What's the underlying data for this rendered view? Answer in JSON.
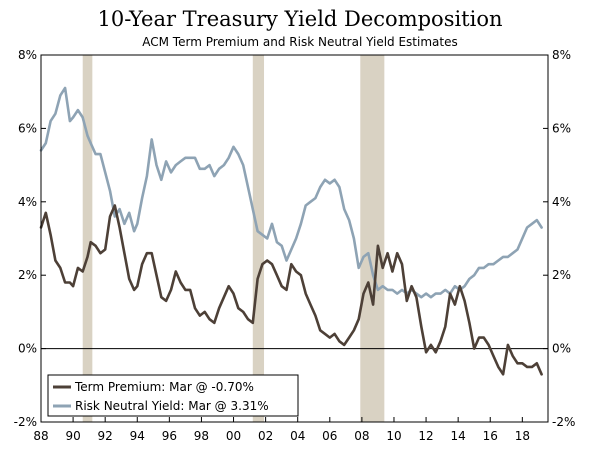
{
  "chart_data": {
    "type": "line",
    "title": "10-Year Treasury Yield Decomposition",
    "subtitle": "ACM Term Premium and Risk Neutral Yield Estimates",
    "xlabel": "",
    "ylabel": "",
    "xlim": [
      1988,
      2019.6
    ],
    "ylim": [
      -2,
      8
    ],
    "x_ticks": [
      1988,
      1990,
      1992,
      1994,
      1996,
      1998,
      2000,
      2002,
      2004,
      2006,
      2008,
      2010,
      2012,
      2014,
      2016,
      2018
    ],
    "x_tick_labels": [
      "88",
      "90",
      "92",
      "94",
      "96",
      "98",
      "00",
      "02",
      "04",
      "06",
      "08",
      "10",
      "12",
      "14",
      "16",
      "18"
    ],
    "y_ticks": [
      -2,
      0,
      2,
      4,
      6,
      8
    ],
    "y_tick_labels_left": [
      "-2%",
      "0%",
      "2%",
      "4%",
      "6%",
      "8%"
    ],
    "y_tick_labels_right": [
      "-2%",
      "0%",
      "2%",
      "4%",
      "6%",
      "8%"
    ],
    "recessions": [
      [
        1990.6,
        1991.2
      ],
      [
        2001.2,
        2001.9
      ],
      [
        2007.9,
        2009.4
      ]
    ],
    "legend": {
      "position": "bottom-left"
    },
    "series": [
      {
        "name": "Term Premium: Mar @ -0.70%",
        "color": "#4d4037",
        "x": [
          1988.0,
          1988.3,
          1988.6,
          1988.9,
          1989.2,
          1989.5,
          1989.8,
          1990.0,
          1990.3,
          1990.6,
          1990.9,
          1991.1,
          1991.4,
          1991.7,
          1992.0,
          1992.3,
          1992.6,
          1992.9,
          1993.2,
          1993.5,
          1993.8,
          1994.0,
          1994.3,
          1994.6,
          1994.9,
          1995.2,
          1995.5,
          1995.8,
          1996.1,
          1996.4,
          1996.7,
          1997.0,
          1997.3,
          1997.6,
          1997.9,
          1998.2,
          1998.5,
          1998.8,
          1999.1,
          1999.4,
          1999.7,
          2000.0,
          2000.3,
          2000.6,
          2000.9,
          2001.2,
          2001.5,
          2001.8,
          2002.1,
          2002.4,
          2002.7,
          2003.0,
          2003.3,
          2003.6,
          2003.9,
          2004.2,
          2004.5,
          2004.8,
          2005.1,
          2005.4,
          2005.7,
          2006.0,
          2006.3,
          2006.6,
          2006.9,
          2007.2,
          2007.5,
          2007.8,
          2008.1,
          2008.4,
          2008.7,
          2009.0,
          2009.3,
          2009.6,
          2009.9,
          2010.2,
          2010.5,
          2010.8,
          2011.1,
          2011.4,
          2011.7,
          2012.0,
          2012.3,
          2012.6,
          2012.9,
          2013.2,
          2013.5,
          2013.8,
          2014.1,
          2014.4,
          2014.7,
          2015.0,
          2015.3,
          2015.6,
          2015.9,
          2016.2,
          2016.5,
          2016.8,
          2017.1,
          2017.4,
          2017.7,
          2018.0,
          2018.3,
          2018.6,
          2018.9,
          2019.2
        ],
        "values": [
          3.3,
          3.7,
          3.1,
          2.4,
          2.2,
          1.8,
          1.8,
          1.7,
          2.2,
          2.1,
          2.5,
          2.9,
          2.8,
          2.6,
          2.7,
          3.6,
          3.9,
          3.3,
          2.6,
          1.9,
          1.6,
          1.7,
          2.3,
          2.6,
          2.6,
          2.0,
          1.4,
          1.3,
          1.6,
          2.1,
          1.8,
          1.6,
          1.6,
          1.1,
          0.9,
          1.0,
          0.8,
          0.7,
          1.1,
          1.4,
          1.7,
          1.5,
          1.1,
          1.0,
          0.8,
          0.7,
          1.9,
          2.3,
          2.4,
          2.3,
          2.0,
          1.7,
          1.6,
          2.3,
          2.1,
          2.0,
          1.5,
          1.2,
          0.9,
          0.5,
          0.4,
          0.3,
          0.4,
          0.2,
          0.1,
          0.3,
          0.5,
          0.8,
          1.5,
          1.8,
          1.2,
          2.8,
          2.2,
          2.6,
          2.1,
          2.6,
          2.3,
          1.3,
          1.7,
          1.4,
          0.6,
          -0.1,
          0.1,
          -0.1,
          0.2,
          0.6,
          1.5,
          1.2,
          1.7,
          1.3,
          0.7,
          0.0,
          0.3,
          0.3,
          0.1,
          -0.2,
          -0.5,
          -0.7,
          0.1,
          -0.2,
          -0.4,
          -0.4,
          -0.5,
          -0.5,
          -0.4,
          -0.7
        ]
      },
      {
        "name": "Risk Neutral Yield: Mar @ 3.31%",
        "color": "#8ea3b4",
        "x": [
          1988.0,
          1988.3,
          1988.6,
          1988.9,
          1989.2,
          1989.5,
          1989.8,
          1990.0,
          1990.3,
          1990.6,
          1990.9,
          1991.1,
          1991.4,
          1991.7,
          1992.0,
          1992.3,
          1992.6,
          1992.9,
          1993.2,
          1993.5,
          1993.8,
          1994.0,
          1994.3,
          1994.6,
          1994.9,
          1995.2,
          1995.5,
          1995.8,
          1996.1,
          1996.4,
          1996.7,
          1997.0,
          1997.3,
          1997.6,
          1997.9,
          1998.2,
          1998.5,
          1998.8,
          1999.1,
          1999.4,
          1999.7,
          2000.0,
          2000.3,
          2000.6,
          2000.9,
          2001.2,
          2001.5,
          2001.8,
          2002.1,
          2002.4,
          2002.7,
          2003.0,
          2003.3,
          2003.6,
          2003.9,
          2004.2,
          2004.5,
          2004.8,
          2005.1,
          2005.4,
          2005.7,
          2006.0,
          2006.3,
          2006.6,
          2006.9,
          2007.2,
          2007.5,
          2007.8,
          2008.1,
          2008.4,
          2008.7,
          2009.0,
          2009.3,
          2009.6,
          2009.9,
          2010.2,
          2010.5,
          2010.8,
          2011.1,
          2011.4,
          2011.7,
          2012.0,
          2012.3,
          2012.6,
          2012.9,
          2013.2,
          2013.5,
          2013.8,
          2014.1,
          2014.4,
          2014.7,
          2015.0,
          2015.3,
          2015.6,
          2015.9,
          2016.2,
          2016.5,
          2016.8,
          2017.1,
          2017.4,
          2017.7,
          2018.0,
          2018.3,
          2018.6,
          2018.9,
          2019.2
        ],
        "values": [
          5.4,
          5.6,
          6.2,
          6.4,
          6.9,
          7.1,
          6.2,
          6.3,
          6.5,
          6.3,
          5.8,
          5.6,
          5.3,
          5.3,
          4.8,
          4.3,
          3.6,
          3.8,
          3.4,
          3.7,
          3.2,
          3.4,
          4.1,
          4.7,
          5.7,
          5.0,
          4.6,
          5.1,
          4.8,
          5.0,
          5.1,
          5.2,
          5.2,
          5.2,
          4.9,
          4.9,
          5.0,
          4.7,
          4.9,
          5.0,
          5.2,
          5.5,
          5.3,
          5.0,
          4.4,
          3.8,
          3.2,
          3.1,
          3.0,
          3.4,
          2.9,
          2.8,
          2.4,
          2.7,
          3.0,
          3.4,
          3.9,
          4.0,
          4.1,
          4.4,
          4.6,
          4.5,
          4.6,
          4.4,
          3.8,
          3.5,
          3.0,
          2.2,
          2.5,
          2.6,
          2.0,
          1.6,
          1.7,
          1.6,
          1.6,
          1.5,
          1.6,
          1.5,
          1.6,
          1.5,
          1.4,
          1.5,
          1.4,
          1.5,
          1.5,
          1.6,
          1.5,
          1.7,
          1.6,
          1.7,
          1.9,
          2.0,
          2.2,
          2.2,
          2.3,
          2.3,
          2.4,
          2.5,
          2.5,
          2.6,
          2.7,
          3.0,
          3.3,
          3.4,
          3.5,
          3.3
        ]
      }
    ]
  }
}
